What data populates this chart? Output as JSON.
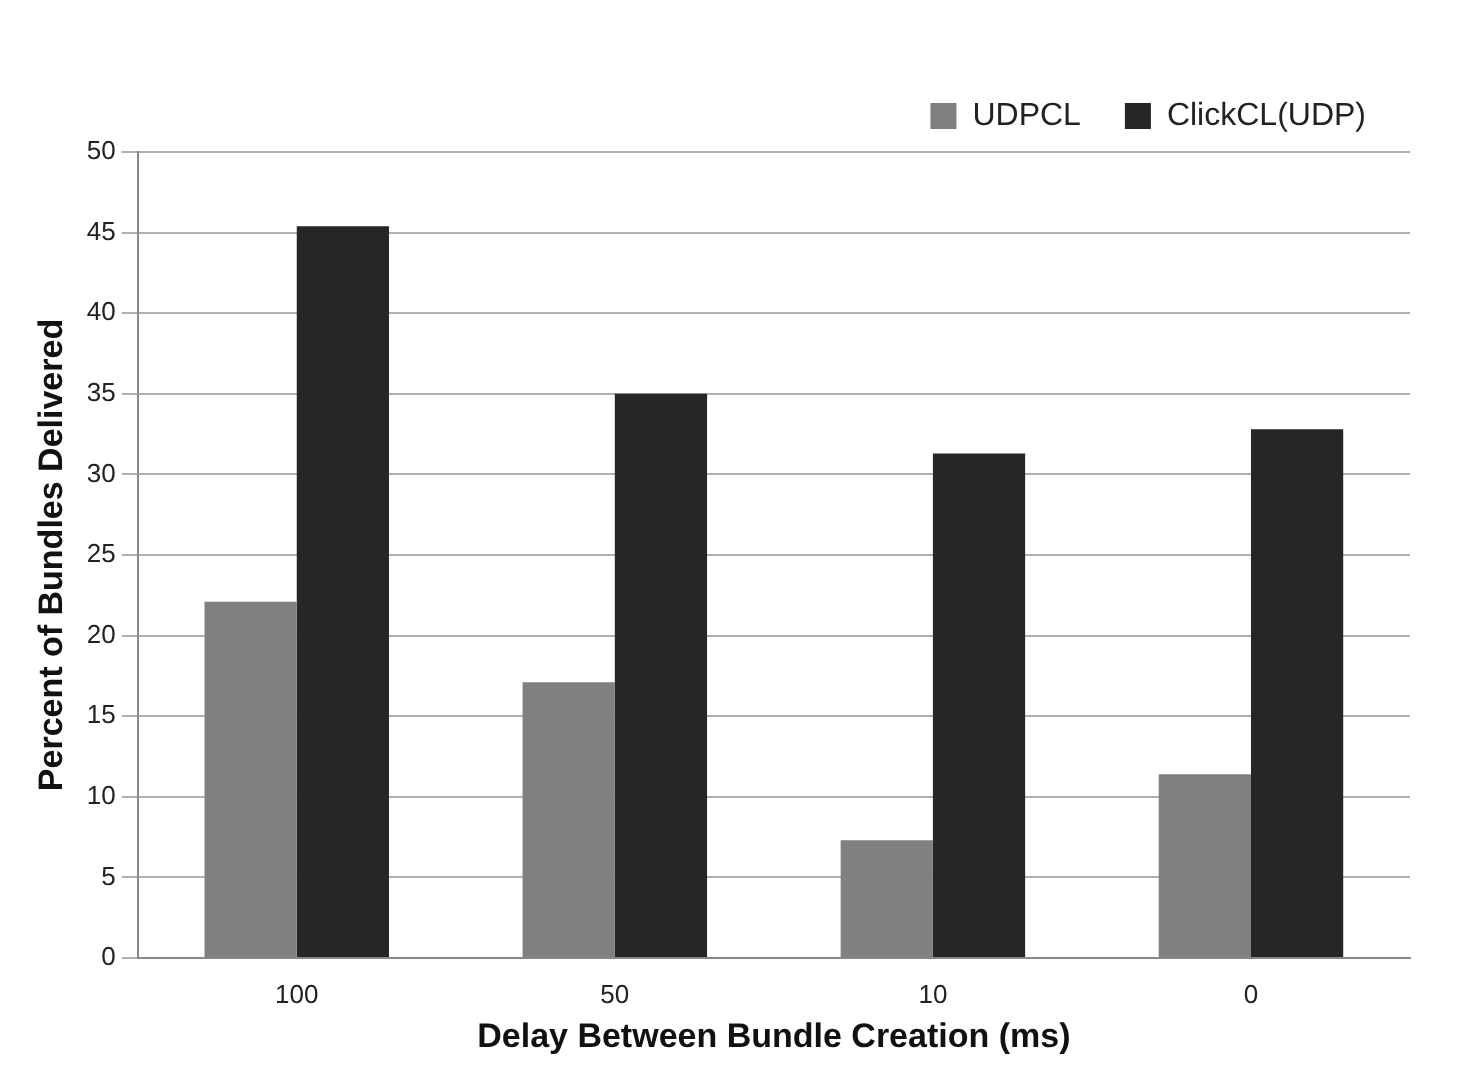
{
  "chart_data": {
    "type": "bar",
    "xlabel": "Delay Between Bundle Creation (ms)",
    "ylabel": "Percent of Bundles Delivered",
    "categories": [
      "100",
      "50",
      "10",
      "0"
    ],
    "series": [
      {
        "name": "UDPCL",
        "color": "#808080",
        "values": [
          22.1,
          17.1,
          7.3,
          11.4
        ]
      },
      {
        "name": "ClickCL(UDP)",
        "color": "#262626",
        "values": [
          45.4,
          35.0,
          31.3,
          32.8
        ]
      }
    ],
    "ylim": [
      0,
      50
    ],
    "yticks": [
      0,
      5,
      10,
      15,
      20,
      25,
      30,
      35,
      40,
      45,
      50
    ],
    "grid": "y",
    "legend": "top right"
  }
}
